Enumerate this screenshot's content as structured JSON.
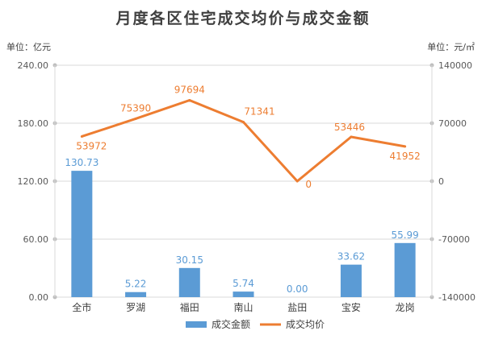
{
  "title": "月度各区住宅成交均价与成交金额",
  "left_unit": "单位：亿元",
  "right_unit": "单位：元/㎡",
  "colors": {
    "bar": "#5b9bd5",
    "line": "#ed7d31",
    "grid": "#d9d9d9",
    "text": "#595959"
  },
  "chart_data": {
    "type": "bar",
    "categories": [
      "全市",
      "罗湖",
      "福田",
      "南山",
      "盐田",
      "宝安",
      "龙岗"
    ],
    "series": [
      {
        "name": "成交金额",
        "type": "bar",
        "axis": "left",
        "values": [
          130.73,
          5.22,
          30.15,
          5.74,
          0.0,
          33.62,
          55.99
        ],
        "labels": [
          "130.73",
          "5.22",
          "30.15",
          "5.74",
          "0.00",
          "33.62",
          "55.99"
        ]
      },
      {
        "name": "成交均价",
        "type": "line",
        "axis": "right",
        "values": [
          53972,
          75390,
          97694,
          71341,
          0,
          53446,
          41952
        ],
        "labels": [
          "53972",
          "75390",
          "97694",
          "71341",
          "0",
          "53446",
          "41952"
        ]
      }
    ],
    "left_axis": {
      "ylim": [
        0,
        240
      ],
      "ticks": [
        "0.00",
        "60.00",
        "120.00",
        "180.00",
        "240.00"
      ]
    },
    "right_axis": {
      "ylim": [
        -140000,
        140000
      ],
      "ticks": [
        "-140000",
        "-70000",
        "0",
        "70000",
        "140000"
      ]
    },
    "grid": true,
    "legend_position": "bottom"
  }
}
